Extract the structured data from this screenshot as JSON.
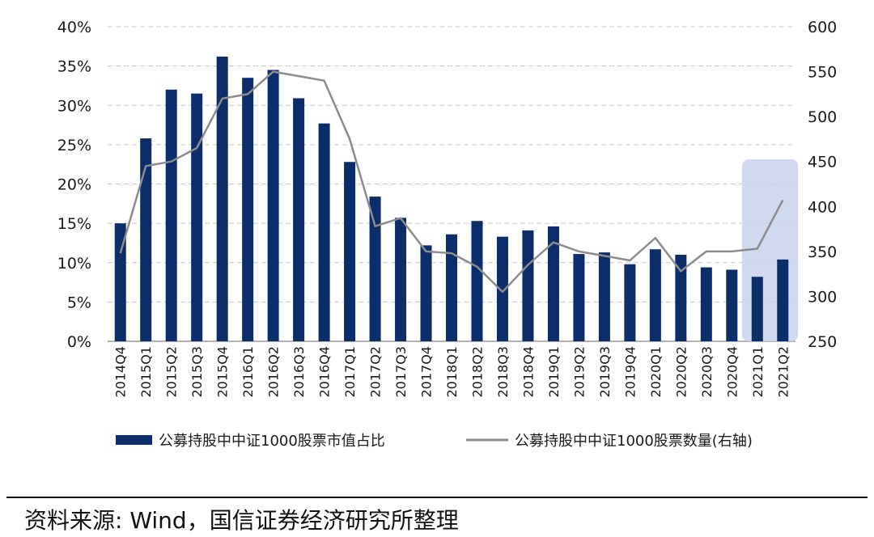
{
  "chart_data": {
    "type": "bar+line",
    "categories": [
      "2014Q4",
      "2015Q1",
      "2015Q2",
      "2015Q3",
      "2015Q4",
      "2016Q1",
      "2016Q2",
      "2016Q3",
      "2016Q4",
      "2017Q1",
      "2017Q2",
      "2017Q3",
      "2017Q4",
      "2018Q1",
      "2018Q2",
      "2018Q3",
      "2018Q4",
      "2019Q1",
      "2019Q2",
      "2019Q3",
      "2019Q4",
      "2020Q1",
      "2020Q2",
      "2020Q3",
      "2020Q4",
      "2021Q1",
      "2021Q2"
    ],
    "series": [
      {
        "name": "公募持股中中证1000股票市值占比",
        "type": "bar",
        "axis": "left",
        "color": "#0b2e6b",
        "values": [
          15.0,
          25.8,
          32.0,
          31.5,
          36.2,
          33.5,
          34.5,
          30.9,
          27.7,
          22.8,
          18.4,
          15.7,
          12.2,
          13.6,
          15.3,
          13.3,
          14.1,
          14.6,
          11.1,
          11.3,
          9.8,
          11.7,
          11.0,
          9.4,
          9.1,
          8.2,
          10.4
        ]
      },
      {
        "name": "公募持股中中证1000股票数量(右轴)",
        "type": "line",
        "axis": "right",
        "color": "#8c8c8c",
        "values": [
          348,
          445,
          450,
          465,
          520,
          525,
          550,
          545,
          540,
          475,
          378,
          387,
          350,
          348,
          333,
          305,
          335,
          360,
          350,
          345,
          340,
          365,
          328,
          350,
          350,
          353,
          407
        ]
      }
    ],
    "y_left": {
      "ticks": [
        "0%",
        "5%",
        "10%",
        "15%",
        "20%",
        "25%",
        "30%",
        "35%",
        "40%"
      ],
      "min": 0,
      "max": 40
    },
    "y_right": {
      "ticks": [
        "250",
        "300",
        "350",
        "400",
        "450",
        "500",
        "550",
        "600"
      ],
      "min": 250,
      "max": 600
    },
    "grid": "horizontal-dashed",
    "highlight": {
      "from": "2021Q1",
      "to": "2021Q2",
      "color": "#c9d2ee"
    },
    "legend": {
      "placement": "bottom",
      "bar_label": "公募持股中中证1000股票市值占比",
      "line_label": "公募持股中中证1000股票数量(右轴)"
    }
  },
  "source_note": "资料来源: Wind，国信证券经济研究所整理"
}
